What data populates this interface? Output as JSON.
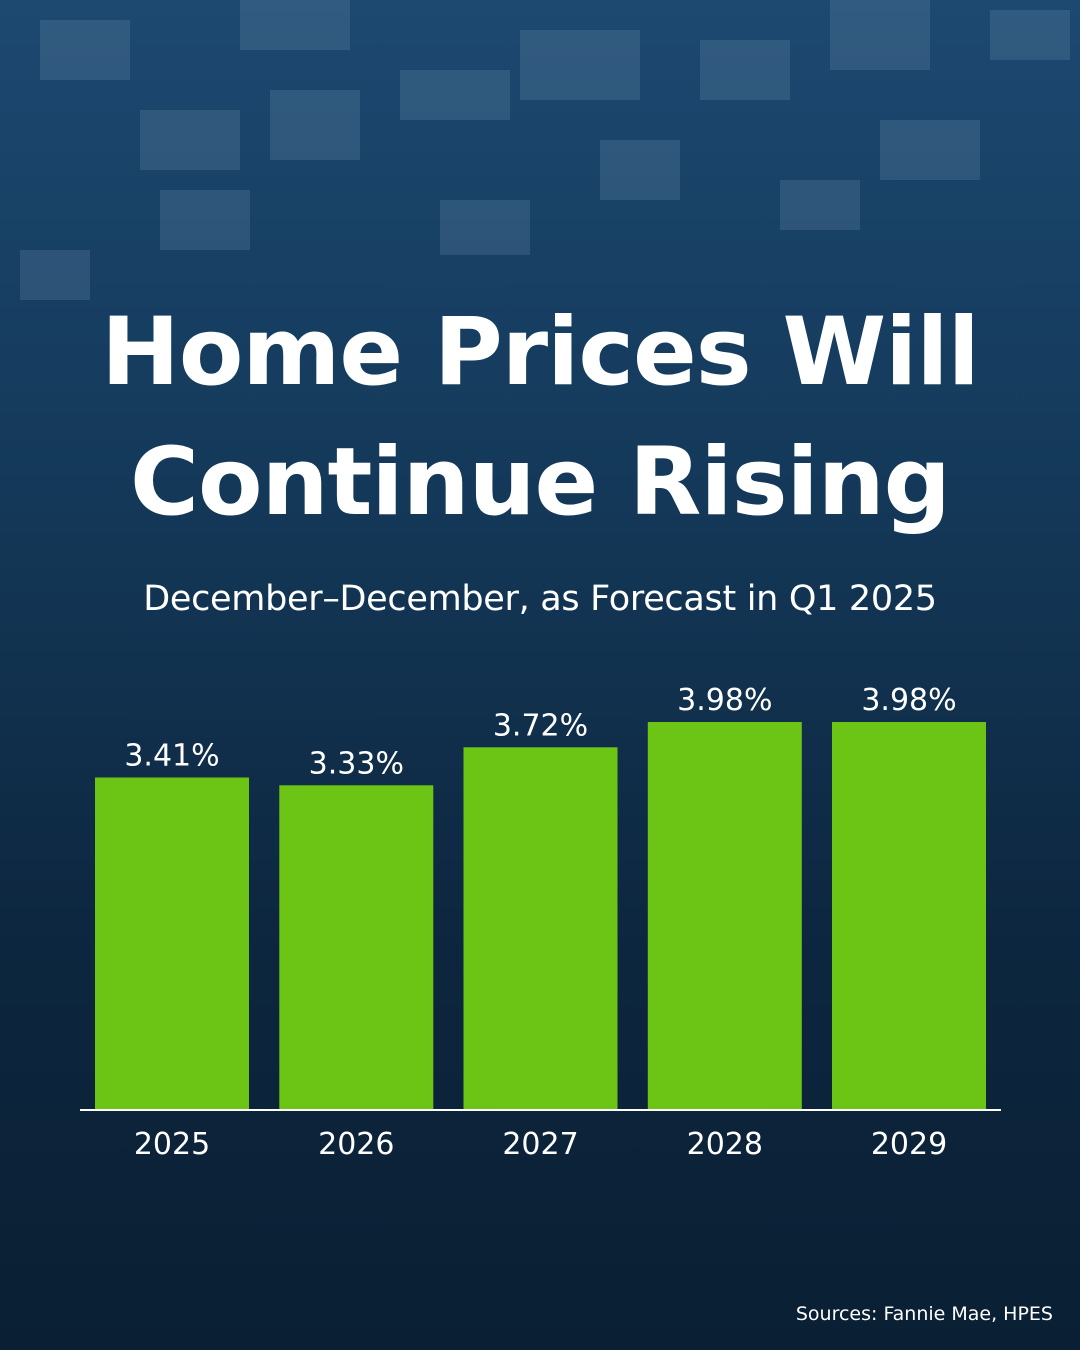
{
  "title_line1": "Home Prices Will",
  "title_line2": "Continue Rising",
  "subtitle": "December–December, as Forecast in Q1 2025",
  "source": "Sources: Fannie Mae, HPES",
  "colors": {
    "bar": "#6cc515",
    "background": "#123452",
    "text": "#ffffff"
  },
  "chart_data": {
    "type": "bar",
    "categories": [
      "2025",
      "2026",
      "2027",
      "2028",
      "2029"
    ],
    "values": [
      3.41,
      3.33,
      3.72,
      3.98,
      3.98
    ],
    "data_labels": [
      "3.41%",
      "3.33%",
      "3.72%",
      "3.98%",
      "3.98%"
    ],
    "title": "Home Prices Will Continue Rising",
    "subtitle": "December–December, as Forecast in Q1 2025",
    "xlabel": "",
    "ylabel": "",
    "ylim": [
      0,
      4
    ],
    "grid": false,
    "legend": "none"
  }
}
